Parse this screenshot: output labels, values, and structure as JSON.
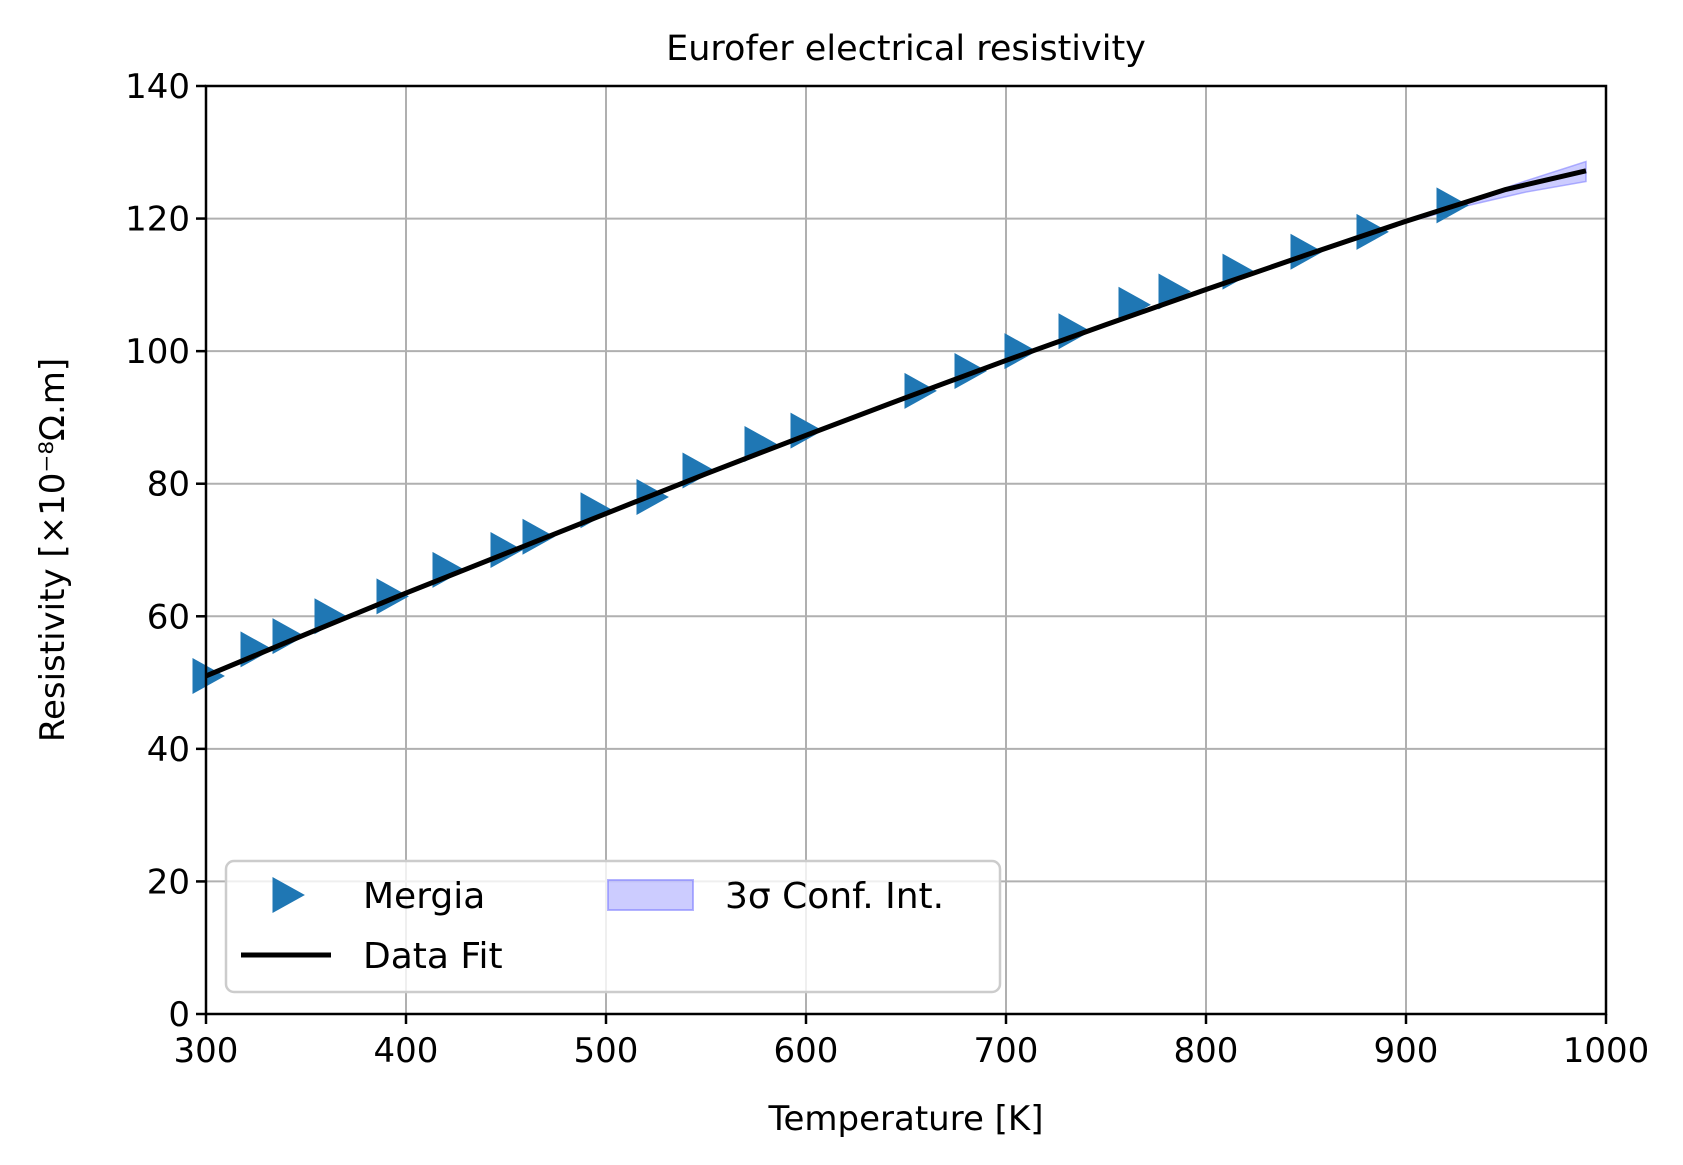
{
  "chart_data": {
    "type": "line",
    "title": "Eurofer electrical resistivity",
    "xlabel": "Temperature [K]",
    "ylabel": "Resistivity [×10⁻⁸Ω.m]",
    "xlim": [
      300,
      1000
    ],
    "ylim": [
      0,
      140
    ],
    "xticks": [
      300,
      400,
      500,
      600,
      700,
      800,
      900,
      1000
    ],
    "yticks": [
      0,
      20,
      40,
      60,
      80,
      100,
      120,
      140
    ],
    "grid": true,
    "legend_position": "lower-left",
    "colors": {
      "marker": "#1f77b4",
      "fit": "#000000",
      "band": "#8080ff"
    },
    "series": [
      {
        "name": "Mergia",
        "type": "scatter",
        "marker": "triangle-right",
        "x": [
          300,
          324,
          340,
          361,
          392,
          420,
          449,
          465,
          494,
          522,
          545,
          576,
          599,
          656,
          681,
          706,
          733,
          763,
          783,
          815,
          849,
          882,
          922
        ],
        "y": [
          51,
          55,
          57,
          60,
          63,
          67,
          70,
          72,
          76,
          78,
          82,
          86,
          88,
          94,
          97,
          100,
          103,
          107,
          109,
          112,
          115,
          118,
          122
        ]
      },
      {
        "name": "Data Fit",
        "type": "line",
        "x": [
          300,
          350,
          400,
          450,
          500,
          550,
          600,
          650,
          700,
          750,
          800,
          850,
          900,
          950,
          990
        ],
        "y": [
          51.0,
          57.3,
          63.5,
          69.5,
          75.5,
          81.5,
          87.3,
          93.0,
          98.6,
          104.0,
          109.3,
          114.5,
          119.6,
          124.4,
          127.2
        ]
      },
      {
        "name": "3σ Conf. Int.",
        "type": "band",
        "x": [
          900,
          930,
          960,
          990
        ],
        "lower": [
          119.4,
          121.9,
          124.0,
          125.6
        ],
        "upper": [
          119.8,
          122.6,
          125.7,
          128.6
        ]
      }
    ]
  }
}
